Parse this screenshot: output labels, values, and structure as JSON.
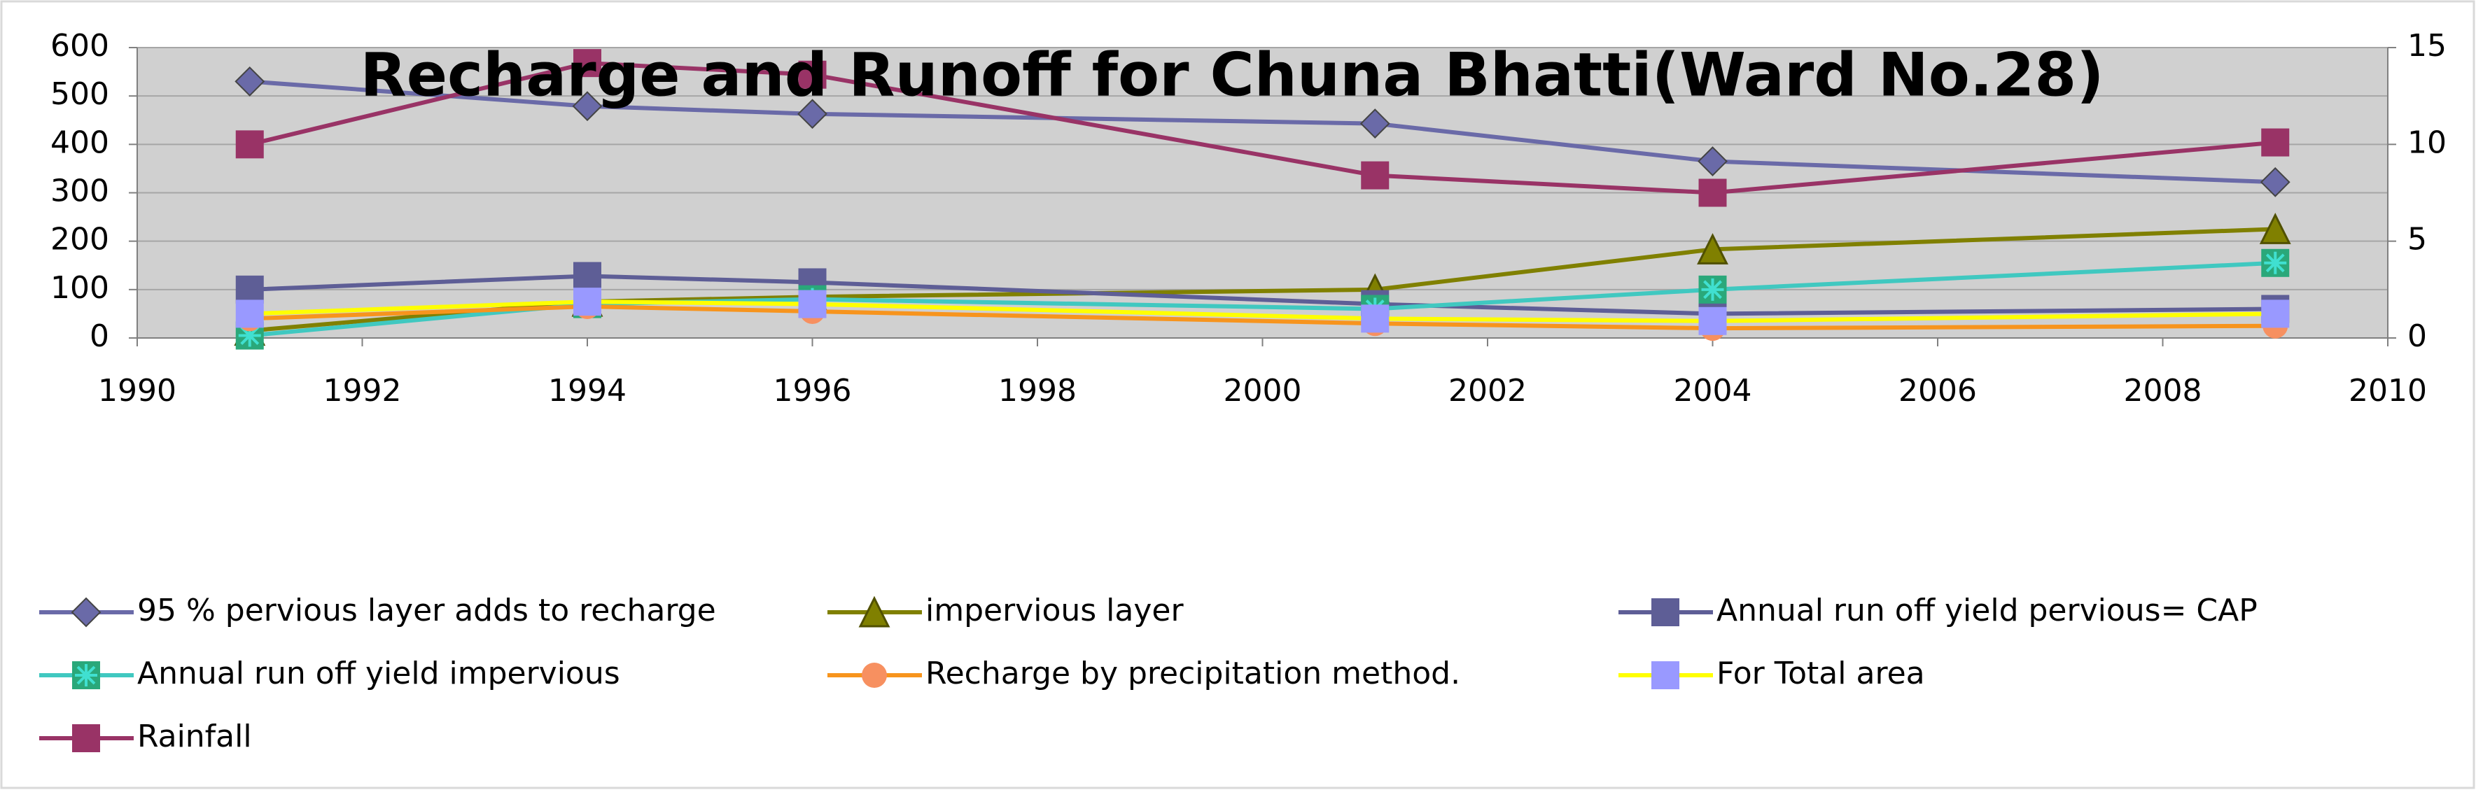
{
  "chart_data": {
    "type": "line",
    "title": "Recharge and Runoff for Chuna Bhatti(Ward No.28)",
    "x": [
      1991,
      1994,
      1996,
      2001,
      2004,
      2009
    ],
    "xlim": [
      1990,
      2010
    ],
    "xticks": [
      1990,
      1992,
      1994,
      1996,
      1998,
      2000,
      2002,
      2004,
      2006,
      2008,
      2010
    ],
    "ylim": [
      0,
      600
    ],
    "yticks": [
      0,
      100,
      200,
      300,
      400,
      500,
      600
    ],
    "y2lim": [
      0,
      15
    ],
    "y2ticks": [
      0,
      5,
      10,
      15
    ],
    "grid": true,
    "legend": "bottom",
    "series": [
      {
        "name": "95 % pervious layer adds to recharge",
        "color": "#6a6aa8",
        "marker": "diamond",
        "marker_color": "#6a6aa8",
        "values": [
          530,
          479,
          463,
          443,
          365,
          322
        ]
      },
      {
        "name": "impervious layer",
        "color": "#808000",
        "marker": "triangle",
        "marker_color": "#808000",
        "values": [
          15,
          75,
          85,
          100,
          183,
          225
        ]
      },
      {
        "name": "Annual  run off yield pervious= CAP",
        "color": "#5e5e96",
        "marker": "square",
        "marker_color": "#5e5e96",
        "values": [
          100,
          128,
          115,
          70,
          50,
          60
        ]
      },
      {
        "name": "Annual  run off yield impervious",
        "color": "#40c8c0",
        "marker": "star-square",
        "marker_color": "#2aa87a",
        "values": [
          5,
          70,
          80,
          60,
          100,
          155
        ]
      },
      {
        "name": "Recharge by precipitation method.",
        "color": "#f7941d",
        "marker": "circle",
        "marker_color": "#f79060",
        "values": [
          40,
          65,
          55,
          30,
          20,
          25
        ]
      },
      {
        "name": "For Total area",
        "color": "#ffff00",
        "marker": "square",
        "marker_color": "#9999ff",
        "values": [
          50,
          75,
          70,
          40,
          35,
          50
        ]
      },
      {
        "name": "Rainfall",
        "color": "#993366",
        "marker": "square",
        "marker_color": "#993366",
        "axis": "y2",
        "values": [
          10,
          14.2,
          13.6,
          8.4,
          7.5,
          10.1
        ]
      }
    ]
  }
}
